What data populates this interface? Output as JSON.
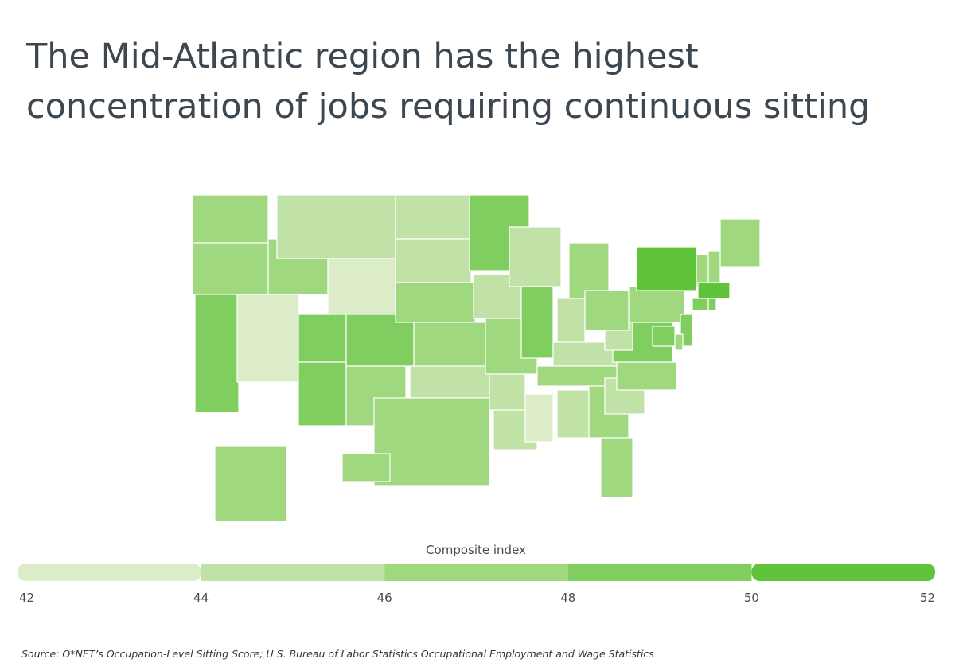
{
  "chart_data": {
    "type": "choropleth",
    "title": [
      "The Mid-Atlantic region has the highest",
      "concentration of jobs requiring continuous sitting"
    ],
    "legend_title": "Composite index",
    "ticks": [
      42,
      44,
      46,
      48,
      50,
      52
    ],
    "colors": [
      "#dcecc8",
      "#c0e2a6",
      "#a0d87f",
      "#80ce60",
      "#5fc43a"
    ],
    "values": [
      47,
      47,
      49,
      43,
      47,
      45,
      43,
      49,
      49,
      49,
      47,
      45,
      45,
      47,
      47,
      45,
      47,
      49,
      45,
      47,
      45,
      45,
      45,
      49,
      43,
      47,
      45,
      45,
      47,
      45,
      47,
      47,
      45,
      47,
      49,
      45,
      47,
      47,
      51,
      47,
      47,
      47,
      51,
      49,
      49,
      49,
      47,
      49,
      47,
      47
    ],
    "source": "Source:  O*NET’s Occupation-Level Sitting Score; U.S. Bureau of Labor Statistics Occupational Employment and Wage Statistics"
  }
}
